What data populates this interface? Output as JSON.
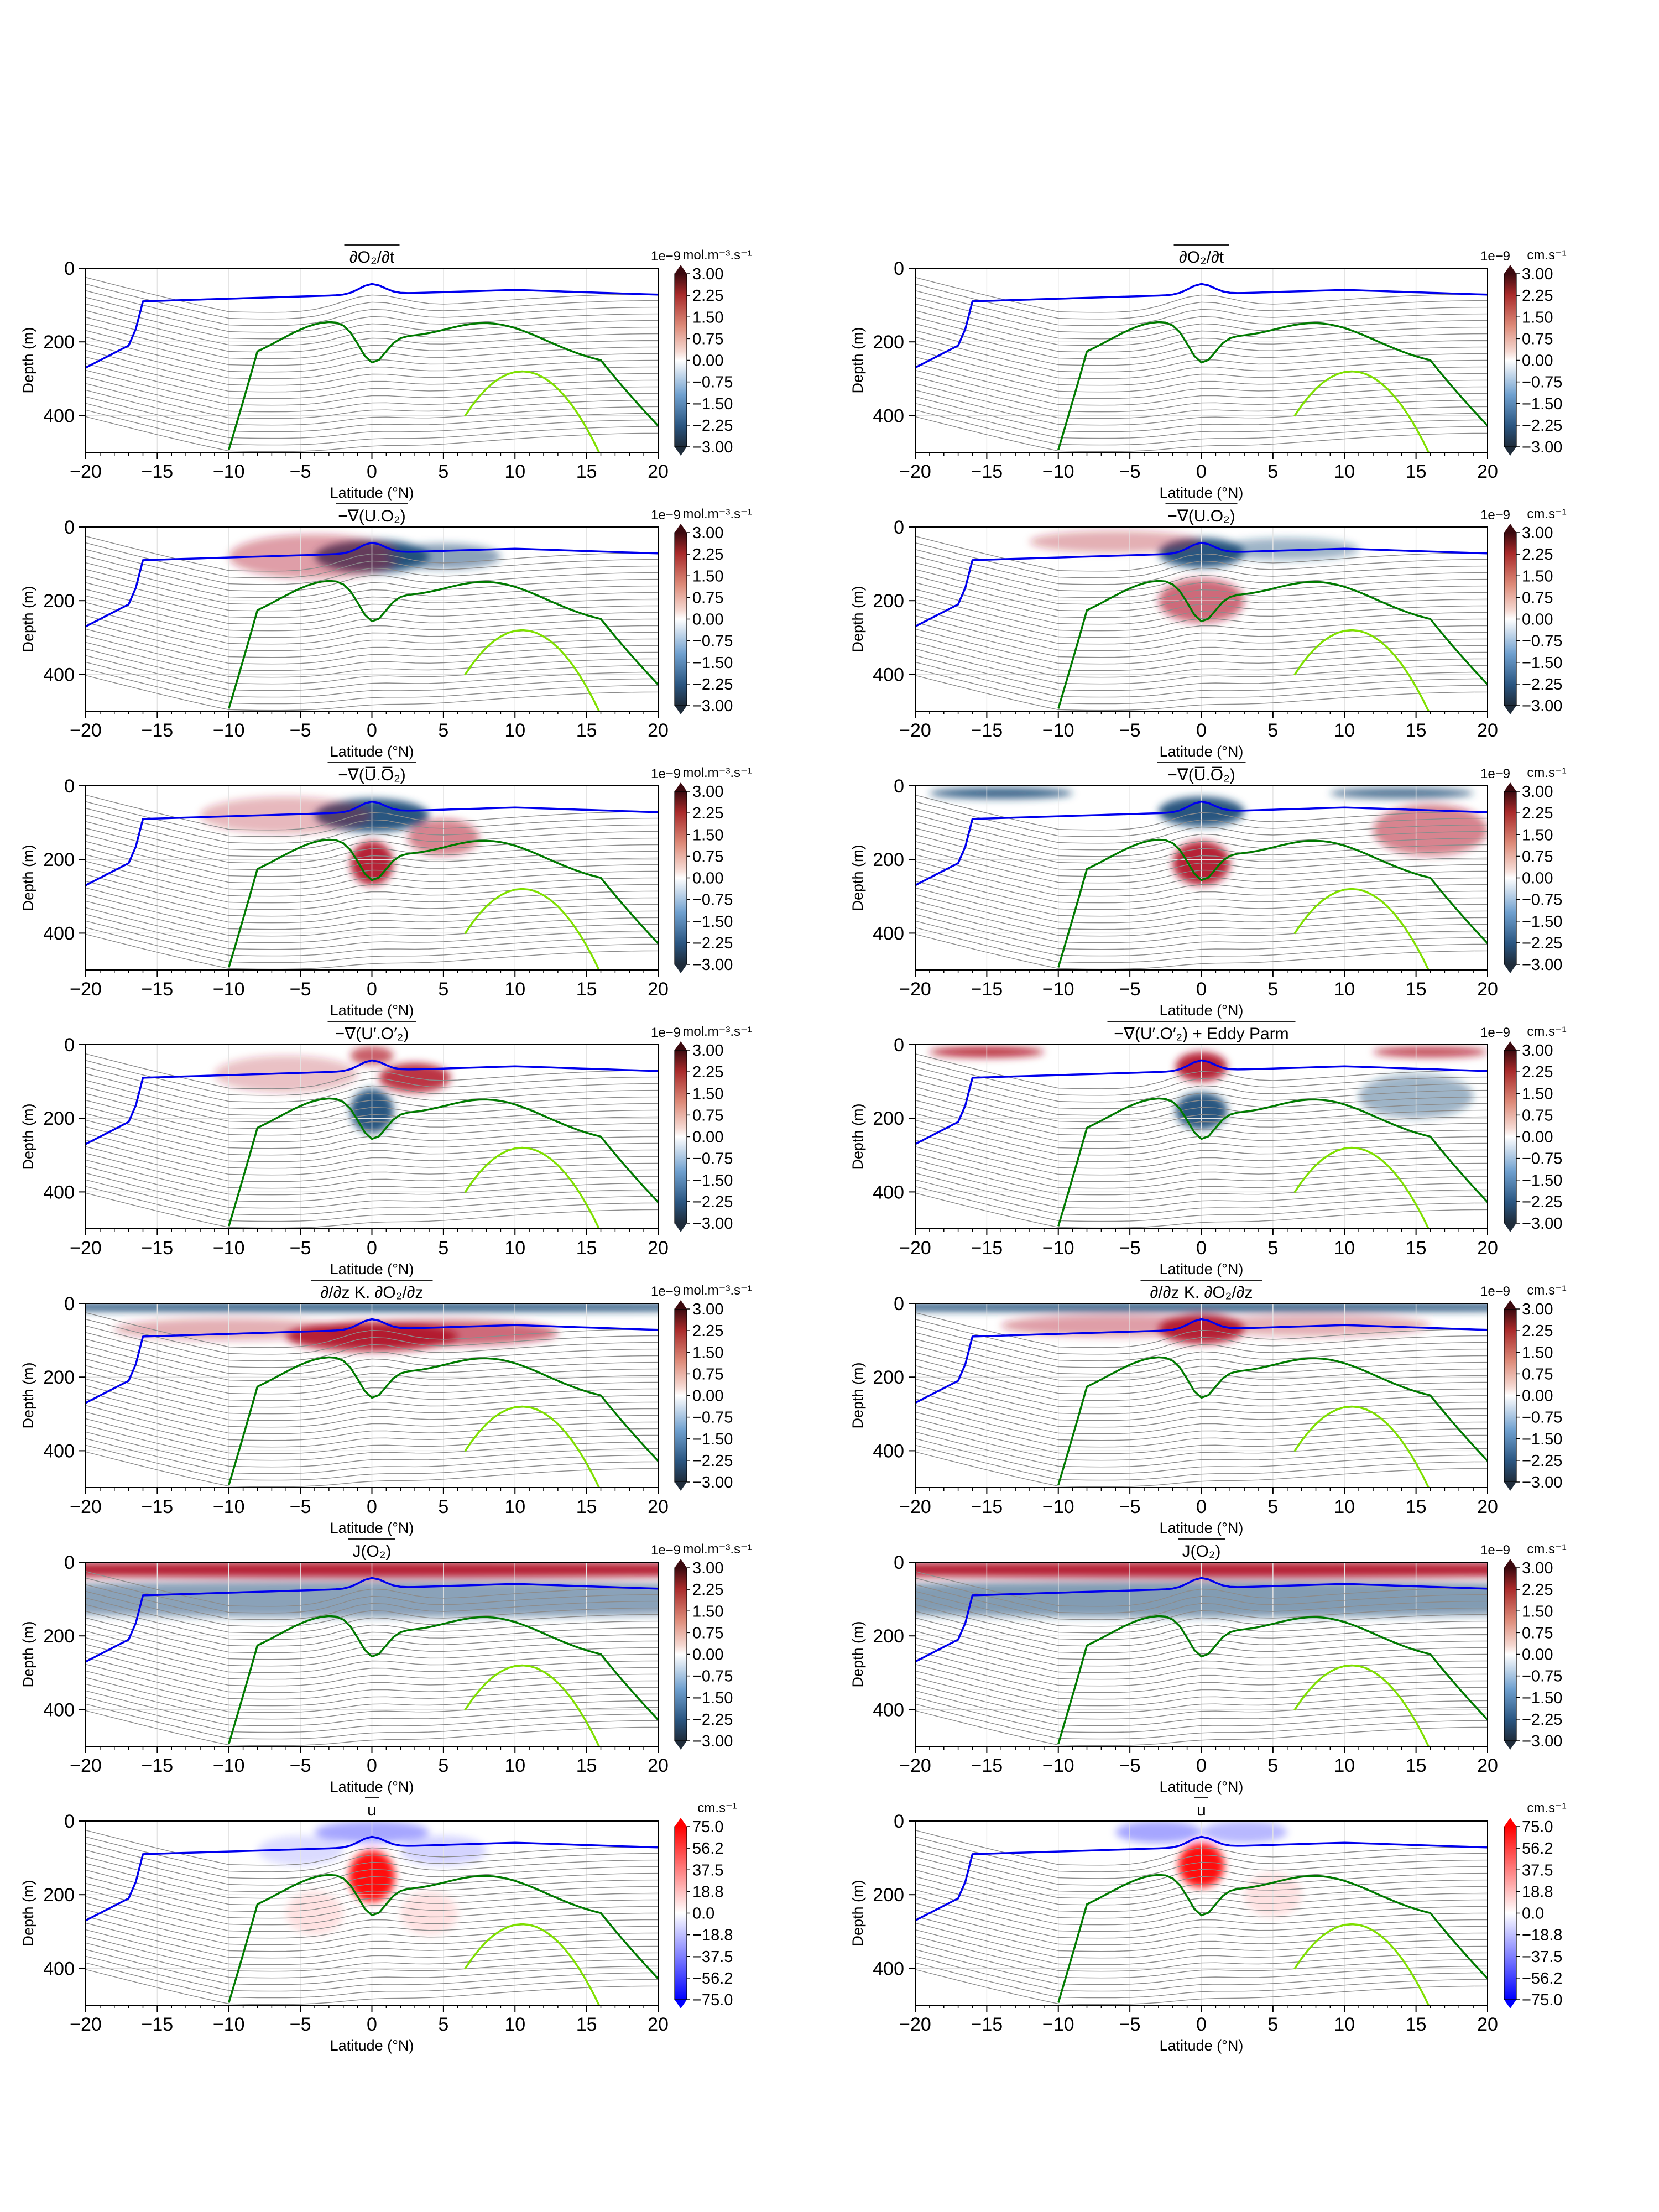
{
  "colors": {
    "blue_contour": "#0000ee",
    "green_contour": "#007a00",
    "lime_contour": "#7fe000",
    "grey_contour": "#8c8c8c",
    "balance_positive": "#b2182b",
    "balance_negative": "#1f4e79",
    "velocity_positive": "#ff0000",
    "velocity_negative": "#0000ff"
  },
  "chart_data": [
    {
      "type": "heatmap",
      "panel": "row1-left",
      "title": "∂O₂/∂t",
      "xlabel": "Latitude (°N)",
      "ylabel": "Depth (m)",
      "xlim": [
        -20,
        20
      ],
      "ylim": [
        500,
        0
      ],
      "xticks": [
        "−20",
        "−15",
        "−10",
        "−5",
        "0",
        "5",
        "10",
        "15",
        "20"
      ],
      "yticks": [
        "0",
        "200",
        "400"
      ],
      "colorbar": {
        "unit": "mol.m⁻³.s⁻¹",
        "scale": "1e−9",
        "ticks": [
          "3.00",
          "2.25",
          "1.50",
          "0.75",
          "0.00",
          "−0.75",
          "−1.50",
          "−2.25",
          "−3.00"
        ],
        "colormap": "balance"
      },
      "features": []
    },
    {
      "type": "heatmap",
      "panel": "row1-right",
      "title": "∂O₂/∂t",
      "xlabel": "Latitude (°N)",
      "ylabel": "Depth (m)",
      "xlim": [
        -20,
        20
      ],
      "ylim": [
        500,
        0
      ],
      "xticks": [
        "−20",
        "−15",
        "−10",
        "−5",
        "0",
        "5",
        "10",
        "15",
        "20"
      ],
      "yticks": [
        "0",
        "200",
        "400"
      ],
      "colorbar": {
        "unit": "cm.s⁻¹",
        "scale": "1e−9",
        "ticks": [
          "3.00",
          "2.25",
          "1.50",
          "0.75",
          "0.00",
          "−0.75",
          "−1.50",
          "−2.25",
          "−3.00"
        ],
        "colormap": "balance"
      },
      "features": []
    },
    {
      "type": "heatmap",
      "panel": "row2-left",
      "title": "−∇(U.O₂)",
      "xlabel": "Latitude (°N)",
      "ylabel": "Depth (m)",
      "xlim": [
        -20,
        20
      ],
      "ylim": [
        500,
        0
      ],
      "xticks": [
        "−20",
        "−15",
        "−10",
        "−5",
        "0",
        "5",
        "10",
        "15",
        "20"
      ],
      "yticks": [
        "0",
        "200",
        "400"
      ],
      "colorbar": {
        "unit": "mol.m⁻³.s⁻¹",
        "scale": "1e−9",
        "ticks": [
          "3.00",
          "2.25",
          "1.50",
          "0.75",
          "0.00",
          "−0.75",
          "−1.50",
          "−2.25",
          "−3.00"
        ],
        "colormap": "balance"
      },
      "features": [
        {
          "lat": 0,
          "depth": 80,
          "value": -3.0,
          "wlat": 4,
          "wdep": 45
        },
        {
          "lat": -4,
          "depth": 80,
          "value": 1.2,
          "wlat": 6,
          "wdep": 60
        },
        {
          "lat": 5,
          "depth": 80,
          "value": -1.5,
          "wlat": 4,
          "wdep": 35
        }
      ]
    },
    {
      "type": "heatmap",
      "panel": "row2-right",
      "title": "−∇(U.O₂)",
      "xlabel": "Latitude (°N)",
      "ylabel": "Depth (m)",
      "xlim": [
        -20,
        20
      ],
      "ylim": [
        500,
        0
      ],
      "xticks": [
        "−20",
        "−15",
        "−10",
        "−5",
        "0",
        "5",
        "10",
        "15",
        "20"
      ],
      "yticks": [
        "0",
        "200",
        "400"
      ],
      "colorbar": {
        "unit": "cm.s⁻¹",
        "scale": "1e−9",
        "ticks": [
          "3.00",
          "2.25",
          "1.50",
          "0.75",
          "0.00",
          "−0.75",
          "−1.50",
          "−2.25",
          "−3.00"
        ],
        "colormap": "balance"
      },
      "features": [
        {
          "lat": 0,
          "depth": 70,
          "value": -3.0,
          "wlat": 3,
          "wdep": 40
        },
        {
          "lat": 0,
          "depth": 200,
          "value": 1.8,
          "wlat": 3,
          "wdep": 60
        },
        {
          "lat": -6,
          "depth": 40,
          "value": 1.0,
          "wlat": 6,
          "wdep": 30
        },
        {
          "lat": 6,
          "depth": 60,
          "value": -1.2,
          "wlat": 5,
          "wdep": 30
        }
      ]
    },
    {
      "type": "heatmap",
      "panel": "row3-left",
      "title": "−∇(U̅.O̅₂)",
      "xlabel": "Latitude (°N)",
      "ylabel": "Depth (m)",
      "xlim": [
        -20,
        20
      ],
      "ylim": [
        500,
        0
      ],
      "xticks": [
        "−20",
        "−15",
        "−10",
        "−5",
        "0",
        "5",
        "10",
        "15",
        "20"
      ],
      "yticks": [
        "0",
        "200",
        "400"
      ],
      "colorbar": {
        "unit": "mol.m⁻³.s⁻¹",
        "scale": "1e−9",
        "ticks": [
          "3.00",
          "2.25",
          "1.50",
          "0.75",
          "0.00",
          "−0.75",
          "−1.50",
          "−2.25",
          "−3.00"
        ],
        "colormap": "balance"
      },
      "features": [
        {
          "lat": 0,
          "depth": 80,
          "value": -3.0,
          "wlat": 4,
          "wdep": 45
        },
        {
          "lat": 0,
          "depth": 210,
          "value": 3.0,
          "wlat": 1.5,
          "wdep": 60
        },
        {
          "lat": 5,
          "depth": 140,
          "value": 1.5,
          "wlat": 2.5,
          "wdep": 50
        },
        {
          "lat": -6,
          "depth": 80,
          "value": 0.9,
          "wlat": 6,
          "wdep": 50
        }
      ]
    },
    {
      "type": "heatmap",
      "panel": "row3-right",
      "title": "−∇(U̅.O̅₂)",
      "xlabel": "Latitude (°N)",
      "ylabel": "Depth (m)",
      "xlim": [
        -20,
        20
      ],
      "ylim": [
        500,
        0
      ],
      "xticks": [
        "−20",
        "−15",
        "−10",
        "−5",
        "0",
        "5",
        "10",
        "15",
        "20"
      ],
      "yticks": [
        "0",
        "200",
        "400"
      ],
      "colorbar": {
        "unit": "cm.s⁻¹",
        "scale": "1e−9",
        "ticks": [
          "3.00",
          "2.25",
          "1.50",
          "0.75",
          "0.00",
          "−0.75",
          "−1.50",
          "−2.25",
          "−3.00"
        ],
        "colormap": "balance"
      },
      "features": [
        {
          "lat": 0,
          "depth": 70,
          "value": -3.0,
          "wlat": 3,
          "wdep": 40
        },
        {
          "lat": 0,
          "depth": 210,
          "value": 3.0,
          "wlat": 2,
          "wdep": 60
        },
        {
          "lat": -14,
          "depth": 20,
          "value": -2.5,
          "wlat": 5,
          "wdep": 15
        },
        {
          "lat": 14,
          "depth": 20,
          "value": -2.2,
          "wlat": 5,
          "wdep": 15
        },
        {
          "lat": 16,
          "depth": 120,
          "value": 1.5,
          "wlat": 4,
          "wdep": 70
        }
      ]
    },
    {
      "type": "heatmap",
      "panel": "row4-left",
      "title": "−∇(U′.O′₂)",
      "xlabel": "Latitude (°N)",
      "ylabel": "Depth (m)",
      "xlim": [
        -20,
        20
      ],
      "ylim": [
        500,
        0
      ],
      "xticks": [
        "−20",
        "−15",
        "−10",
        "−5",
        "0",
        "5",
        "10",
        "15",
        "20"
      ],
      "yticks": [
        "0",
        "200",
        "400"
      ],
      "colorbar": {
        "unit": "mol.m⁻³.s⁻¹",
        "scale": "1e−9",
        "ticks": [
          "3.00",
          "2.25",
          "1.50",
          "0.75",
          "0.00",
          "−0.75",
          "−1.50",
          "−2.25",
          "−3.00"
        ],
        "colormap": "balance"
      },
      "features": [
        {
          "lat": 0,
          "depth": 180,
          "value": -3.0,
          "wlat": 1.5,
          "wdep": 60
        },
        {
          "lat": 3,
          "depth": 90,
          "value": 2.5,
          "wlat": 2.5,
          "wdep": 40
        },
        {
          "lat": 0,
          "depth": 30,
          "value": 2.0,
          "wlat": 1.5,
          "wdep": 25
        },
        {
          "lat": -6,
          "depth": 80,
          "value": 0.8,
          "wlat": 5,
          "wdep": 50
        }
      ]
    },
    {
      "type": "heatmap",
      "panel": "row4-right",
      "title": "−∇(U′.O′₂) + Eddy Parm",
      "xlabel": "Latitude (°N)",
      "ylabel": "Depth (m)",
      "xlim": [
        -20,
        20
      ],
      "ylim": [
        500,
        0
      ],
      "xticks": [
        "−20",
        "−15",
        "−10",
        "−5",
        "0",
        "5",
        "10",
        "15",
        "20"
      ],
      "yticks": [
        "0",
        "200",
        "400"
      ],
      "colorbar": {
        "unit": "cm.s⁻¹",
        "scale": "1e−9",
        "ticks": [
          "3.00",
          "2.25",
          "1.50",
          "0.75",
          "0.00",
          "−0.75",
          "−1.50",
          "−2.25",
          "−3.00"
        ],
        "colormap": "balance"
      },
      "features": [
        {
          "lat": 0,
          "depth": 180,
          "value": -2.8,
          "wlat": 1.8,
          "wdep": 50
        },
        {
          "lat": 0,
          "depth": 60,
          "value": 2.8,
          "wlat": 1.8,
          "wdep": 40
        },
        {
          "lat": -15,
          "depth": 20,
          "value": 2.5,
          "wlat": 4,
          "wdep": 15
        },
        {
          "lat": 16,
          "depth": 20,
          "value": 2.2,
          "wlat": 4,
          "wdep": 15
        },
        {
          "lat": 15,
          "depth": 140,
          "value": -1.2,
          "wlat": 4,
          "wdep": 60
        }
      ]
    },
    {
      "type": "heatmap",
      "panel": "row5-left",
      "title": "∂/∂z K. ∂O₂/∂z",
      "xlabel": "Latitude (°N)",
      "ylabel": "Depth (m)",
      "xlim": [
        -20,
        20
      ],
      "ylim": [
        500,
        0
      ],
      "xticks": [
        "−20",
        "−15",
        "−10",
        "−5",
        "0",
        "5",
        "10",
        "15",
        "20"
      ],
      "yticks": [
        "0",
        "200",
        "400"
      ],
      "colorbar": {
        "unit": "mol.m⁻³.s⁻¹",
        "scale": "1e−9",
        "ticks": [
          "3.00",
          "2.25",
          "1.50",
          "0.75",
          "0.00",
          "−0.75",
          "−1.50",
          "−2.25",
          "−3.00"
        ],
        "colormap": "balance"
      },
      "features": [
        {
          "lat": 0,
          "depth": 10,
          "value": -3.0,
          "wlat": 40,
          "wdep": 12
        },
        {
          "lat": 0,
          "depth": 90,
          "value": 2.8,
          "wlat": 6,
          "wdep": 40
        },
        {
          "lat": 5,
          "depth": 80,
          "value": 1.8,
          "wlat": 8,
          "wdep": 35
        },
        {
          "lat": -10,
          "depth": 70,
          "value": 1.0,
          "wlat": 8,
          "wdep": 30
        }
      ]
    },
    {
      "type": "heatmap",
      "panel": "row5-right",
      "title": "∂/∂z K. ∂O₂/∂z",
      "xlabel": "Latitude (°N)",
      "ylabel": "Depth (m)",
      "xlim": [
        -20,
        20
      ],
      "ylim": [
        500,
        0
      ],
      "xticks": [
        "−20",
        "−15",
        "−10",
        "−5",
        "0",
        "5",
        "10",
        "15",
        "20"
      ],
      "yticks": [
        "0",
        "200",
        "400"
      ],
      "colorbar": {
        "unit": "cm.s⁻¹",
        "scale": "1e−9",
        "ticks": [
          "3.00",
          "2.25",
          "1.50",
          "0.75",
          "0.00",
          "−0.75",
          "−1.50",
          "−2.25",
          "−3.00"
        ],
        "colormap": "balance"
      },
      "features": [
        {
          "lat": 0,
          "depth": 10,
          "value": -3.0,
          "wlat": 40,
          "wdep": 12
        },
        {
          "lat": 0,
          "depth": 70,
          "value": 3.0,
          "wlat": 3,
          "wdep": 40
        },
        {
          "lat": -6,
          "depth": 60,
          "value": 1.2,
          "wlat": 8,
          "wdep": 30
        },
        {
          "lat": 8,
          "depth": 60,
          "value": 1.0,
          "wlat": 8,
          "wdep": 30
        }
      ]
    },
    {
      "type": "heatmap",
      "panel": "row6-left",
      "title": "J(O₂)",
      "xlabel": "Latitude (°N)",
      "ylabel": "Depth (m)",
      "xlim": [
        -20,
        20
      ],
      "ylim": [
        500,
        0
      ],
      "xticks": [
        "−20",
        "−15",
        "−10",
        "−5",
        "0",
        "5",
        "10",
        "15",
        "20"
      ],
      "yticks": [
        "0",
        "200",
        "400"
      ],
      "colorbar": {
        "unit": "mol.m⁻³.s⁻¹",
        "scale": "1e−9",
        "ticks": [
          "3.00",
          "2.25",
          "1.50",
          "0.75",
          "0.00",
          "−0.75",
          "−1.50",
          "−2.25",
          "−3.00"
        ],
        "colormap": "balance"
      },
      "features": [
        {
          "lat": 0,
          "depth": 20,
          "value": 3.0,
          "wlat": 40,
          "wdep": 22
        },
        {
          "lat": 0,
          "depth": 100,
          "value": -1.5,
          "wlat": 40,
          "wdep": 50
        }
      ]
    },
    {
      "type": "heatmap",
      "panel": "row6-right",
      "title": "J(O₂)",
      "xlabel": "Latitude (°N)",
      "ylabel": "Depth (m)",
      "xlim": [
        -20,
        20
      ],
      "ylim": [
        500,
        0
      ],
      "xticks": [
        "−20",
        "−15",
        "−10",
        "−5",
        "0",
        "5",
        "10",
        "15",
        "20"
      ],
      "yticks": [
        "0",
        "200",
        "400"
      ],
      "colorbar": {
        "unit": "cm.s⁻¹",
        "scale": "1e−9",
        "ticks": [
          "3.00",
          "2.25",
          "1.50",
          "0.75",
          "0.00",
          "−0.75",
          "−1.50",
          "−2.25",
          "−3.00"
        ],
        "colormap": "balance"
      },
      "features": [
        {
          "lat": 0,
          "depth": 20,
          "value": 3.0,
          "wlat": 40,
          "wdep": 22
        },
        {
          "lat": 0,
          "depth": 100,
          "value": -1.6,
          "wlat": 40,
          "wdep": 50
        }
      ]
    },
    {
      "type": "heatmap",
      "panel": "row7-left",
      "title": "u",
      "xlabel": "Latitude (°N)",
      "ylabel": "Depth (m)",
      "xlim": [
        -20,
        20
      ],
      "ylim": [
        500,
        0
      ],
      "xticks": [
        "−20",
        "−15",
        "−10",
        "−5",
        "0",
        "5",
        "10",
        "15",
        "20"
      ],
      "yticks": [
        "0",
        "200",
        "400"
      ],
      "colorbar": {
        "unit": "cm.s⁻¹",
        "scale": "",
        "ticks": [
          "75.0",
          "56.2",
          "37.5",
          "18.8",
          "0.0",
          "−18.8",
          "−37.5",
          "−56.2",
          "−75.0"
        ],
        "colormap": "velocity"
      },
      "features": [
        {
          "lat": 0,
          "depth": 150,
          "value": 75,
          "wlat": 1.6,
          "wdep": 70
        },
        {
          "lat": 0,
          "depth": 30,
          "value": -25,
          "wlat": 4,
          "wdep": 30
        },
        {
          "lat": -5,
          "depth": 80,
          "value": -10,
          "wlat": 3,
          "wdep": 40
        },
        {
          "lat": 5,
          "depth": 80,
          "value": -12,
          "wlat": 3,
          "wdep": 40
        },
        {
          "lat": 4,
          "depth": 250,
          "value": 8,
          "wlat": 2,
          "wdep": 60
        },
        {
          "lat": -4,
          "depth": 250,
          "value": 8,
          "wlat": 2,
          "wdep": 60
        }
      ]
    },
    {
      "type": "heatmap",
      "panel": "row7-right",
      "title": "u",
      "xlabel": "Latitude (°N)",
      "ylabel": "Depth (m)",
      "xlim": [
        -20,
        20
      ],
      "ylim": [
        500,
        0
      ],
      "xticks": [
        "−20",
        "−15",
        "−10",
        "−5",
        "0",
        "5",
        "10",
        "15",
        "20"
      ],
      "yticks": [
        "0",
        "200",
        "400"
      ],
      "colorbar": {
        "unit": "cm.s⁻¹",
        "scale": "",
        "ticks": [
          "75.0",
          "56.2",
          "37.5",
          "18.8",
          "0.0",
          "−18.8",
          "−37.5",
          "−56.2",
          "−75.0"
        ],
        "colormap": "velocity"
      },
      "features": [
        {
          "lat": 0,
          "depth": 120,
          "value": 75,
          "wlat": 1.6,
          "wdep": 60
        },
        {
          "lat": -3,
          "depth": 30,
          "value": -25,
          "wlat": 3,
          "wdep": 30
        },
        {
          "lat": 3,
          "depth": 30,
          "value": -20,
          "wlat": 3,
          "wdep": 30
        },
        {
          "lat": 5,
          "depth": 200,
          "value": 8,
          "wlat": 2,
          "wdep": 60
        }
      ]
    }
  ]
}
